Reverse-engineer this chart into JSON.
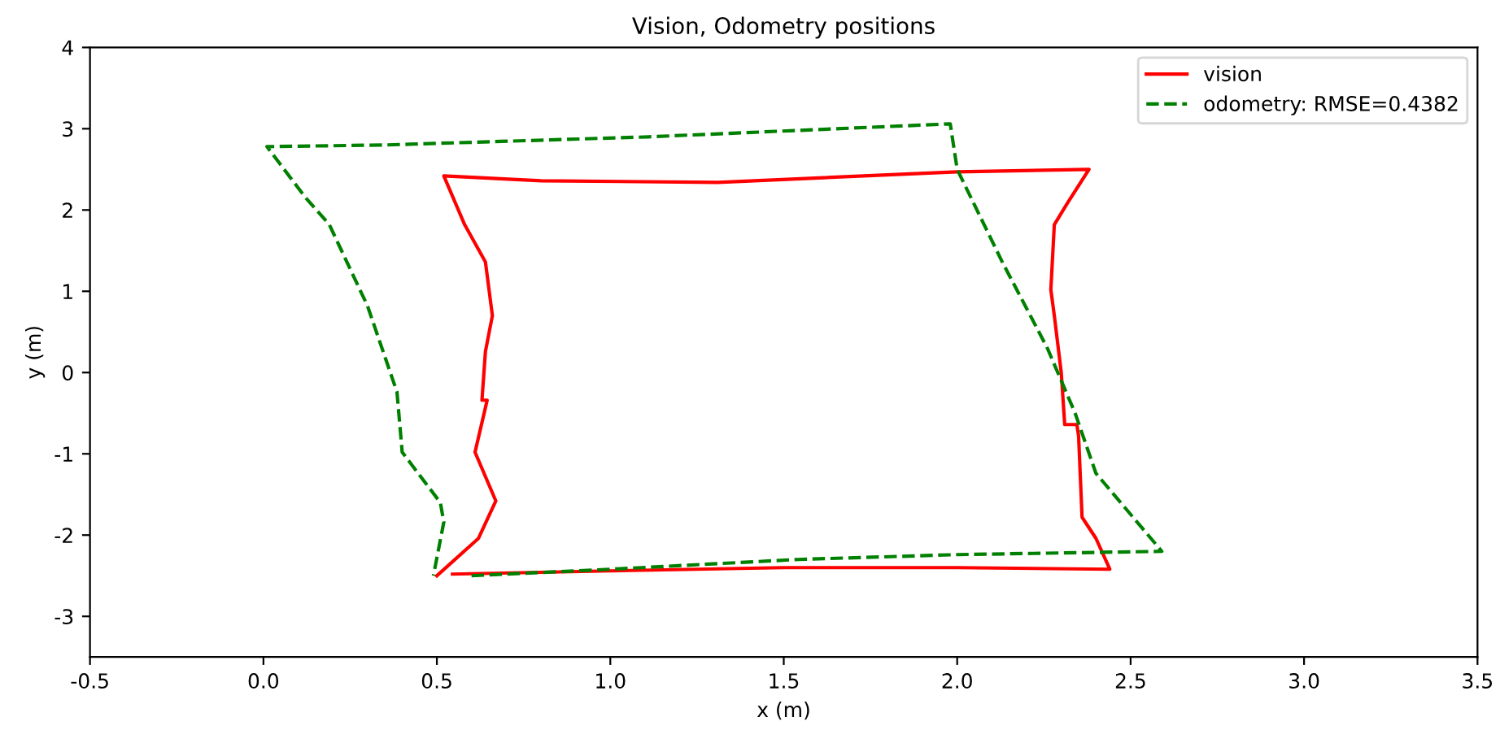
{
  "chart_data": {
    "type": "line",
    "title": "Vision, Odometry positions",
    "xlabel": "x (m)",
    "ylabel": "y (m)",
    "xlim": [
      -0.5,
      3.5
    ],
    "xticks": [
      -0.5,
      {
        "value": 0,
        "label": "0.0"
      },
      0.5,
      {
        "value": 1,
        "label": "1.0"
      },
      1.5,
      {
        "value": 2,
        "label": "2.0"
      },
      2.5,
      {
        "value": 3,
        "label": "3.0"
      },
      3.5
    ],
    "ylim": [
      -3.5,
      4
    ],
    "yticks": [
      -3,
      -2,
      -1,
      0,
      1,
      2,
      3,
      4
    ],
    "grid": false,
    "legend": "top right",
    "series": [
      {
        "name": "vision",
        "color": "#ff0000",
        "line_style": "solid",
        "x": [
          0.545,
          1.0,
          1.5,
          2.0,
          2.44,
          2.4,
          2.36,
          2.35,
          2.345,
          2.31,
          2.3,
          2.28,
          2.27,
          2.28,
          2.32,
          2.38,
          2.0,
          1.31,
          0.8,
          0.52,
          0.58,
          0.64,
          0.66,
          0.64,
          0.63,
          0.645,
          0.61,
          0.67,
          0.62,
          0.5
        ],
        "values": [
          -2.48,
          -2.44,
          -2.4,
          -2.4,
          -2.42,
          -2.04,
          -1.78,
          -0.78,
          -0.64,
          -0.64,
          0.0,
          0.7,
          1.02,
          1.82,
          2.1,
          2.5,
          2.47,
          2.34,
          2.36,
          2.42,
          1.82,
          1.36,
          0.7,
          0.26,
          -0.34,
          -0.34,
          -0.98,
          -1.58,
          -2.04,
          -2.5
        ]
      },
      {
        "name": "odometry: RMSE=0.4382",
        "color": "#008000",
        "line_style": "dashed",
        "x": [
          0.6,
          1.0,
          1.54,
          2.0,
          2.59,
          2.4,
          2.34,
          2.26,
          2.13,
          2.0,
          1.98,
          1.11,
          0.35,
          0.01,
          0.12,
          0.19,
          0.3,
          0.385,
          0.4,
          0.51,
          0.52,
          0.49
        ],
        "values": [
          -2.5,
          -2.42,
          -2.3,
          -2.24,
          -2.2,
          -1.24,
          -0.5,
          0.3,
          1.36,
          2.5,
          3.06,
          2.9,
          2.8,
          2.78,
          2.16,
          1.82,
          0.82,
          -0.24,
          -0.98,
          -1.6,
          -1.84,
          -2.5
        ]
      }
    ]
  }
}
